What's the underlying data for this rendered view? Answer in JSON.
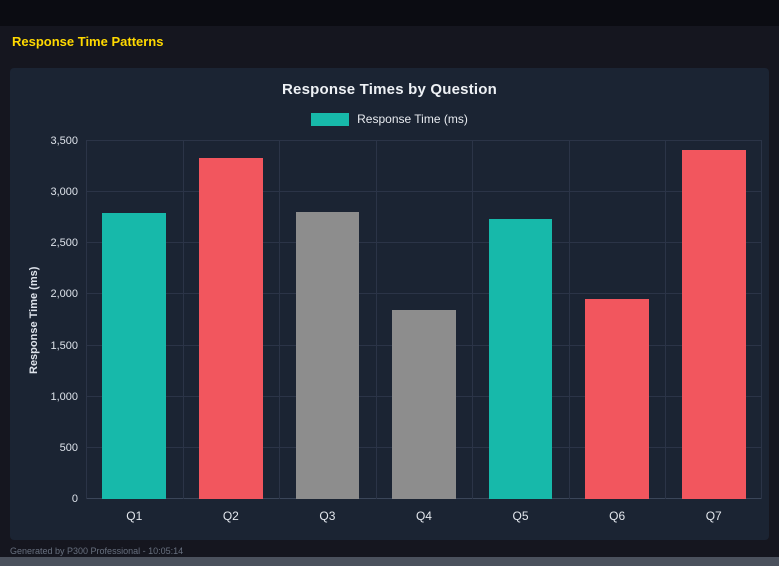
{
  "page": {
    "title": "Response Time Patterns",
    "footer": "Generated by P300 Professional - 10:05:14"
  },
  "chart": {
    "title": "Response Times by Question",
    "legend_label": "Response Time (ms)",
    "ylabel": "Response Time (ms)"
  },
  "chart_data": {
    "type": "bar",
    "title": "Response Times by Question",
    "categories": [
      "Q1",
      "Q2",
      "Q3",
      "Q4",
      "Q5",
      "Q6",
      "Q7"
    ],
    "values": [
      2800,
      3330,
      2810,
      1850,
      2740,
      1960,
      3410
    ],
    "bar_colors": [
      "#17b9aa",
      "#f2565e",
      "#8d8d8d",
      "#8d8d8d",
      "#17b9aa",
      "#f2565e",
      "#f2565e"
    ],
    "legend": [
      {
        "label": "Response Time (ms)",
        "color": "#17b9aa"
      }
    ],
    "legend_position": "top",
    "xlabel": "",
    "ylabel": "Response Time (ms)",
    "ylim": [
      0,
      3500
    ],
    "ytick_step": 500,
    "ytick_labels": [
      "0",
      "500",
      "1,000",
      "1,500",
      "2,000",
      "2,500",
      "3,000",
      "3,500"
    ],
    "grid": true,
    "colors": {
      "teal": "#17b9aa",
      "red": "#f2565e",
      "gray": "#8d8d8d"
    }
  }
}
